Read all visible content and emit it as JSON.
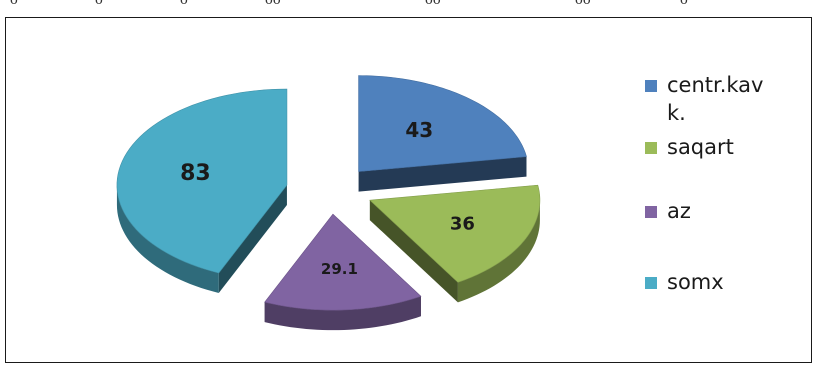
{
  "chart_data": {
    "type": "pie",
    "style": "3d-exploded",
    "title": "",
    "categories": [
      "centr.kav k.",
      "saqart",
      "az",
      "somx"
    ],
    "legend_lines": [
      [
        "centr.kav",
        "k."
      ],
      [
        "saqart"
      ],
      [
        "az"
      ],
      [
        "somx"
      ]
    ],
    "values": [
      43,
      36,
      29.1,
      83
    ],
    "data_labels": [
      "43",
      "36",
      "29.1",
      "83"
    ],
    "colors": [
      "#4f81bd",
      "#9bbb59",
      "#8064a2",
      "#4bacc6"
    ],
    "legend_position": "right"
  }
}
